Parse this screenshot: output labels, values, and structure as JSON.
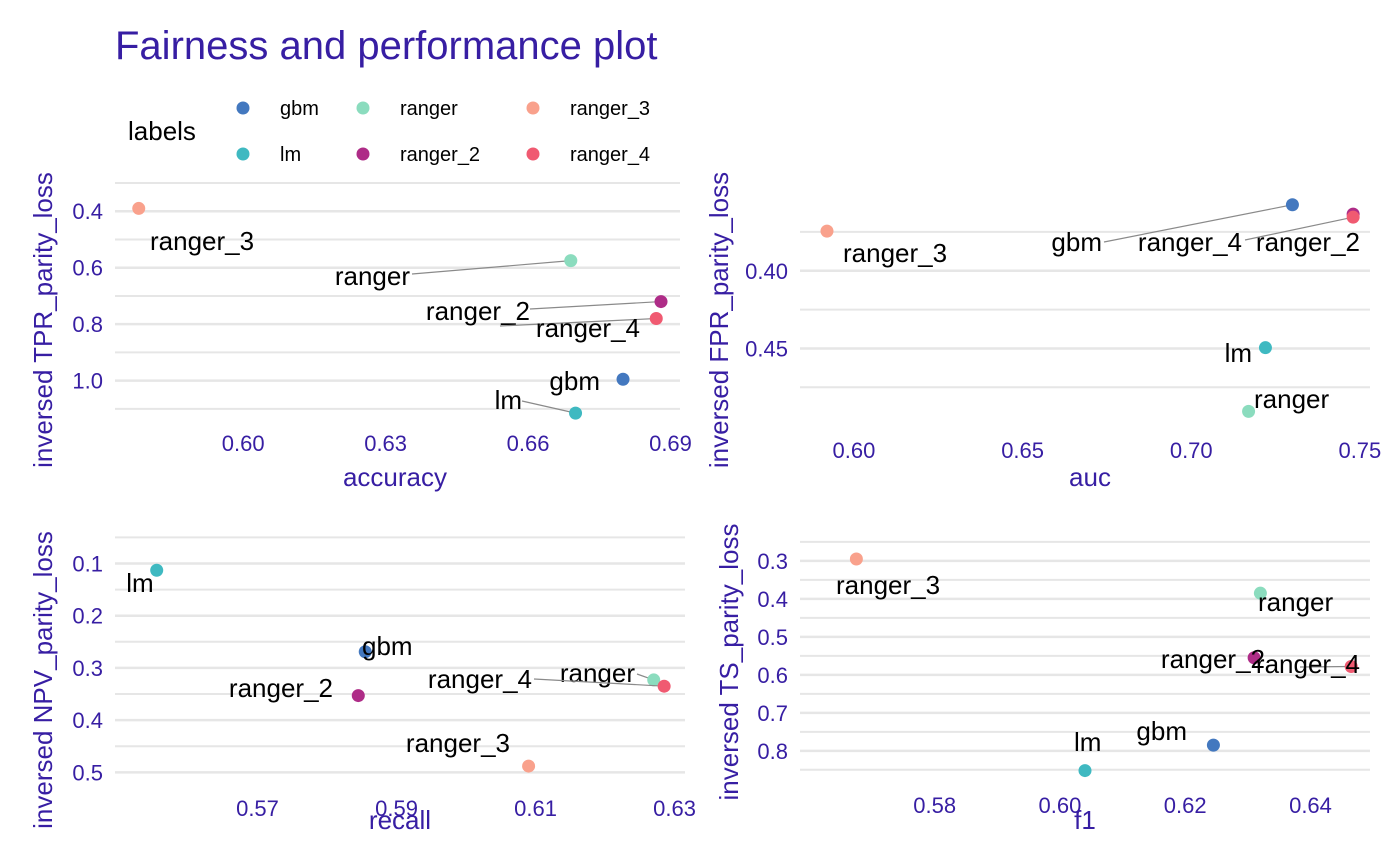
{
  "title": "Fairness and performance plot",
  "legend": {
    "title": "labels",
    "entries": [
      {
        "label": "gbm",
        "color": "#4378bf"
      },
      {
        "label": "ranger",
        "color": "#8bdcbe"
      },
      {
        "label": "ranger_3",
        "color": "#f9a18c"
      },
      {
        "label": "lm",
        "color": "#3fb9c1"
      },
      {
        "label": "ranger_2",
        "color": "#ae2c87"
      },
      {
        "label": "ranger_4",
        "color": "#f05a71"
      }
    ]
  },
  "chart_data": [
    {
      "type": "scatter",
      "xlabel": "accuracy",
      "ylabel": "inversed TPR_parity_loss",
      "y_reversed": true,
      "xticks": [
        0.6,
        0.63,
        0.66,
        0.69
      ],
      "xtick_labels": [
        "0.60",
        "0.63",
        "0.66",
        "0.69"
      ],
      "yticks": [
        0.4,
        0.6,
        0.8,
        1.0
      ],
      "ytick_labels": [
        "0.4",
        "0.6",
        "0.8",
        "1.0"
      ],
      "points": [
        {
          "label": "ranger_3",
          "x": 0.578,
          "y": 0.39
        },
        {
          "label": "ranger",
          "x": 0.669,
          "y": 0.575
        },
        {
          "label": "ranger_2",
          "x": 0.688,
          "y": 0.72
        },
        {
          "label": "ranger_4",
          "x": 0.687,
          "y": 0.78
        },
        {
          "label": "gbm",
          "x": 0.68,
          "y": 0.995
        },
        {
          "label": "lm",
          "x": 0.67,
          "y": 1.115
        }
      ]
    },
    {
      "type": "scatter",
      "xlabel": "auc",
      "ylabel": "inversed FPR_parity_loss",
      "y_reversed": true,
      "xticks": [
        0.6,
        0.65,
        0.7,
        0.75
      ],
      "xtick_labels": [
        "0.60",
        "0.65",
        "0.70",
        "0.75"
      ],
      "yticks": [
        0.4,
        0.45
      ],
      "ytick_labels": [
        "0.40",
        "0.45"
      ],
      "points": [
        {
          "label": "gbm",
          "x": 0.73,
          "y": 0.3575
        },
        {
          "label": "ranger_2",
          "x": 0.748,
          "y": 0.3635
        },
        {
          "label": "ranger_4",
          "x": 0.748,
          "y": 0.3655
        },
        {
          "label": "ranger_3",
          "x": 0.592,
          "y": 0.3745
        },
        {
          "label": "lm",
          "x": 0.722,
          "y": 0.4495
        },
        {
          "label": "ranger",
          "x": 0.717,
          "y": 0.4905
        }
      ]
    },
    {
      "type": "scatter",
      "xlabel": "recall",
      "ylabel": "inversed NPV_parity_loss",
      "y_reversed": true,
      "xticks": [
        0.57,
        0.59,
        0.61,
        0.63
      ],
      "xtick_labels": [
        "0.57",
        "0.59",
        "0.61",
        "0.63"
      ],
      "yticks": [
        0.1,
        0.2,
        0.3,
        0.4,
        0.5
      ],
      "ytick_labels": [
        "0.1",
        "0.2",
        "0.3",
        "0.4",
        "0.5"
      ],
      "points": [
        {
          "label": "lm",
          "x": 0.5555,
          "y": 0.113
        },
        {
          "label": "gbm",
          "x": 0.5855,
          "y": 0.269
        },
        {
          "label": "ranger",
          "x": 0.627,
          "y": 0.323
        },
        {
          "label": "ranger_4",
          "x": 0.6285,
          "y": 0.335
        },
        {
          "label": "ranger_2",
          "x": 0.5845,
          "y": 0.353
        },
        {
          "label": "ranger_3",
          "x": 0.609,
          "y": 0.488
        }
      ]
    },
    {
      "type": "scatter",
      "xlabel": "f1",
      "ylabel": "inversed TS_parity_loss",
      "y_reversed": true,
      "xticks": [
        0.58,
        0.6,
        0.62,
        0.64
      ],
      "xtick_labels": [
        "0.58",
        "0.60",
        "0.62",
        "0.64"
      ],
      "yticks": [
        0.3,
        0.4,
        0.5,
        0.6,
        0.7,
        0.8
      ],
      "ytick_labels": [
        "0.3",
        "0.4",
        "0.5",
        "0.6",
        "0.7",
        "0.8"
      ],
      "points": [
        {
          "label": "ranger_3",
          "x": 0.5675,
          "y": 0.295
        },
        {
          "label": "ranger",
          "x": 0.632,
          "y": 0.385
        },
        {
          "label": "ranger_2",
          "x": 0.631,
          "y": 0.555
        },
        {
          "label": "ranger_4",
          "x": 0.6465,
          "y": 0.578
        },
        {
          "label": "gbm",
          "x": 0.6245,
          "y": 0.785
        },
        {
          "label": "lm",
          "x": 0.604,
          "y": 0.852
        }
      ]
    }
  ]
}
